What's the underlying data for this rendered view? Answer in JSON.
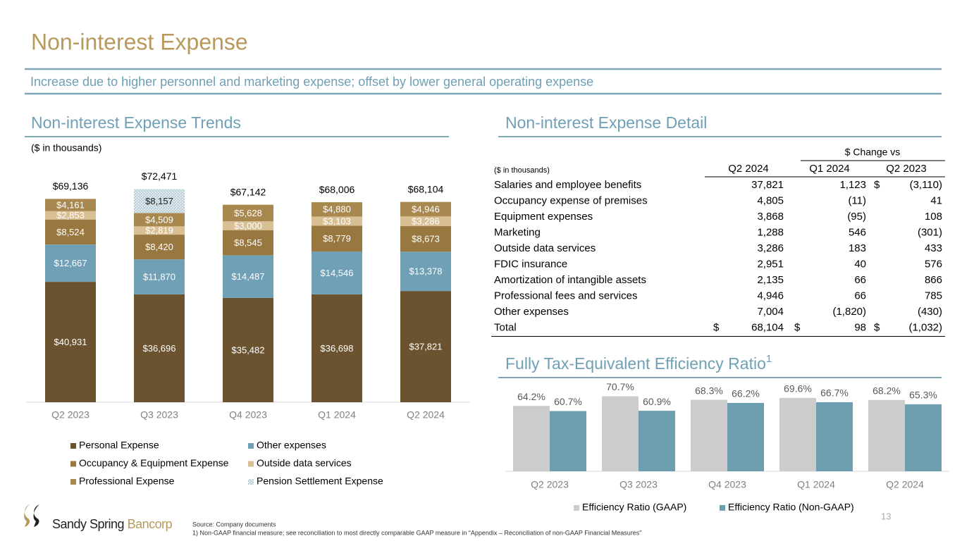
{
  "header": {
    "title": "Non-interest Expense",
    "subtitle": "Increase due to higher personnel and marketing expense; offset by lower general operating expense"
  },
  "chart_data": [
    {
      "type": "bar",
      "stacked": true,
      "title": "Non-interest Expense Trends",
      "unit_note": "($ in thousands)",
      "categories": [
        "Q2 2023",
        "Q3 2023",
        "Q4 2023",
        "Q1 2024",
        "Q2 2024"
      ],
      "series": [
        {
          "name": "Personal Expense",
          "color": "#6b5330",
          "values": [
            40931,
            36696,
            35482,
            36698,
            37821
          ],
          "value_labels": [
            "$40,931",
            "$36,696",
            "$35,482",
            "$36,698",
            "$37,821"
          ]
        },
        {
          "name": "Other expenses",
          "color": "#6fa0b5",
          "values": [
            12667,
            11870,
            14487,
            14546,
            13378
          ],
          "value_labels": [
            "$12,667",
            "$11,870",
            "$14,487",
            "$14,546",
            "$13,378"
          ]
        },
        {
          "name": "Occupancy & Equipment Expense",
          "color": "#98783f",
          "values": [
            8524,
            8420,
            8545,
            8779,
            8673
          ],
          "value_labels": [
            "$8,524",
            "$8,420",
            "$8,545",
            "$8,779",
            "$8,673"
          ]
        },
        {
          "name": "Outside data services",
          "color": "#d8bf94",
          "values": [
            2853,
            2819,
            3000,
            3103,
            3286
          ],
          "value_labels": [
            "$2,853",
            "$2,819",
            "$3,000",
            "$3,103",
            "$3,286"
          ]
        },
        {
          "name": "Professional Expense",
          "color": "#a9884f",
          "values": [
            4161,
            4509,
            5628,
            4880,
            4946
          ],
          "value_labels": [
            "$4,161",
            "$4,509",
            "$5,628",
            "$4,880",
            "$4,946"
          ]
        },
        {
          "name": "Pension Settlement Expense",
          "color": "#b7d0dc",
          "pattern": "hatch",
          "values": [
            null,
            8157,
            null,
            null,
            null
          ],
          "value_labels": [
            null,
            "$8,157",
            null,
            null,
            null
          ]
        }
      ],
      "totals": {
        "values": [
          69136,
          72471,
          67142,
          68006,
          68104
        ],
        "value_labels": [
          "$69,136",
          "$72,471",
          "$67,142",
          "$68,006",
          "$68,104"
        ]
      },
      "ylim": [
        0,
        80000
      ],
      "legend": "bottom"
    },
    {
      "type": "bar",
      "stacked": false,
      "title": "Fully Tax-Equivalent Efficiency Ratio",
      "title_note": "1",
      "categories": [
        "Q2 2023",
        "Q3 2023",
        "Q4 2023",
        "Q1 2024",
        "Q2 2024"
      ],
      "series": [
        {
          "name": "Efficiency Ratio (GAAP)",
          "color": "#cccccc",
          "values": [
            64.2,
            70.7,
            68.3,
            69.6,
            68.2
          ],
          "value_labels": [
            "64.2%",
            "70.7%",
            "68.3%",
            "69.6%",
            "68.2%"
          ]
        },
        {
          "name": "Efficiency Ratio (Non-GAAP)",
          "color": "#6e9fb0",
          "values": [
            60.7,
            60.9,
            66.2,
            66.7,
            65.3
          ],
          "value_labels": [
            "60.7%",
            "60.9%",
            "66.2%",
            "66.7%",
            "65.3%"
          ]
        }
      ],
      "ylim": [
        20,
        80
      ],
      "legend": "bottom"
    }
  ],
  "table": {
    "title": "Non-interest Expense Detail",
    "group_header": "$ Change vs",
    "unit_note": "($ in thousands)",
    "columns": [
      "Q2 2024",
      "Q1 2024",
      "Q2 2023"
    ],
    "rows": [
      {
        "label": "Salaries and employee benefits",
        "cells": [
          "37,821",
          "1,123",
          {
            "currency": "$",
            "amount": "(3,110)"
          }
        ]
      },
      {
        "label": "Occupancy expense of premises",
        "cells": [
          "4,805",
          "(11)",
          "41"
        ]
      },
      {
        "label": "Equipment expenses",
        "cells": [
          "3,868",
          "(95)",
          "108"
        ]
      },
      {
        "label": "Marketing",
        "cells": [
          "1,288",
          "546",
          "(301)"
        ]
      },
      {
        "label": "Outside data services",
        "cells": [
          "3,286",
          "183",
          "433"
        ]
      },
      {
        "label": "FDIC insurance",
        "cells": [
          "2,951",
          "40",
          "576"
        ]
      },
      {
        "label": "Amortization of intangible assets",
        "cells": [
          "2,135",
          "66",
          "866"
        ]
      },
      {
        "label": "Professional fees and services",
        "cells": [
          "4,946",
          "66",
          "785"
        ]
      },
      {
        "label": "Other expenses",
        "cells": [
          "7,004",
          "(1,820)",
          "(430)"
        ]
      },
      {
        "label": "Total",
        "cells": [
          {
            "currency": "$",
            "amount": "68,104"
          },
          {
            "currency": "$",
            "amount": "98"
          },
          {
            "currency": "$",
            "amount": "(1,032)"
          }
        ]
      }
    ]
  },
  "footer": {
    "brand": "Sandy Spring",
    "brand_accent": "Bancorp",
    "source": "Source: Company documents",
    "note": "1) Non-GAAP financial measure; see reconciliation to most directly comparable GAAP measure in “Appendix – Reconciliation of non-GAAP Financial Measures”",
    "page": "13"
  }
}
